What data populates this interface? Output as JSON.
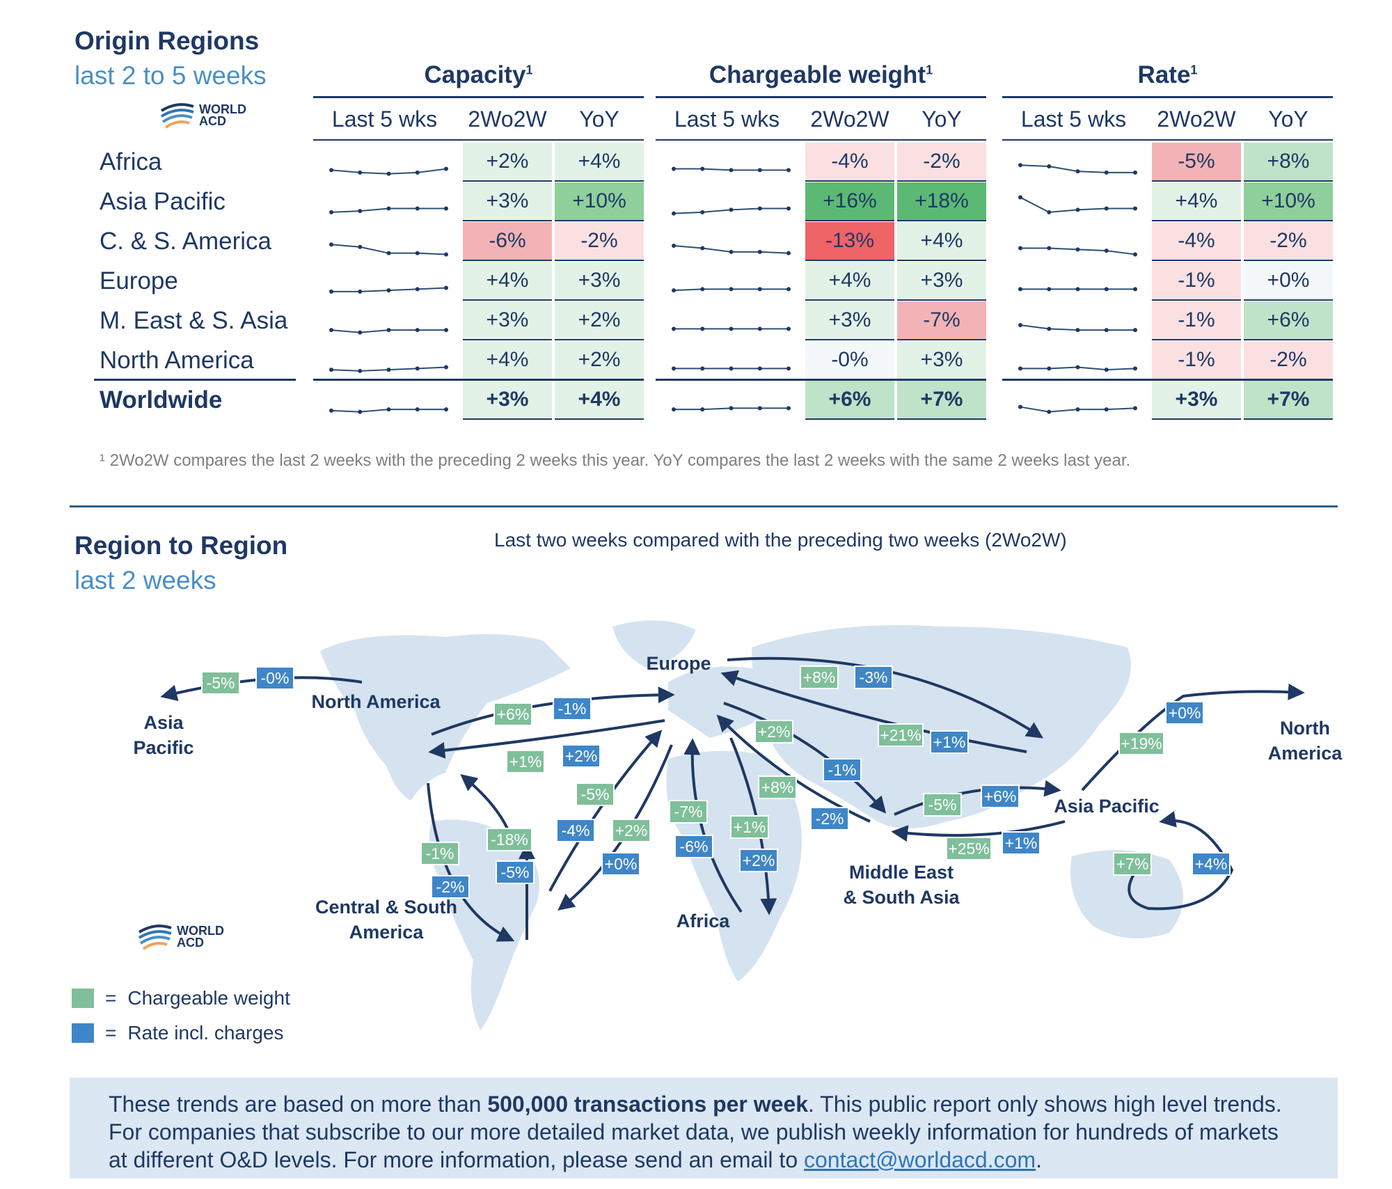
{
  "section1": {
    "title": "Origin Regions",
    "subtitle": "last 2 to 5 weeks",
    "logo_text": [
      "WORLD",
      "ACD"
    ],
    "groups": [
      {
        "title": "Capacity",
        "sup": "1",
        "cols": [
          "Last 5 wks",
          "2Wo2W",
          "YoY"
        ]
      },
      {
        "title": "Chargeable weight",
        "sup": "1",
        "cols": [
          "Last 5 wks",
          "2Wo2W",
          "YoY"
        ]
      },
      {
        "title": "Rate",
        "sup": "1",
        "cols": [
          "Last 5 wks",
          "2Wo2W",
          "YoY"
        ]
      }
    ],
    "rows": [
      "Africa",
      "Asia Pacific",
      "C. & S. America",
      "Europe",
      "M. East & S. Asia",
      "North America",
      "Worldwide"
    ],
    "footnote": "¹ 2Wo2W compares the last 2 weeks with the preceding 2 weeks this year. YoY compares the last 2 weeks with the same 2 weeks last year."
  },
  "chart_data": [
    {
      "type": "table",
      "title": "Origin Regions – last 2 to 5 weeks",
      "columns": [
        "Capacity 2Wo2W",
        "Capacity YoY",
        "Chargeable weight 2Wo2W",
        "Chargeable weight YoY",
        "Rate 2Wo2W",
        "Rate YoY"
      ],
      "rows": [
        {
          "region": "Africa",
          "values": [
            "+2%",
            "+4%",
            "-4%",
            "-2%",
            "-5%",
            "+8%"
          ],
          "numeric": [
            2,
            4,
            -4,
            -2,
            -5,
            8
          ]
        },
        {
          "region": "Asia Pacific",
          "values": [
            "+3%",
            "+10%",
            "+16%",
            "+18%",
            "+4%",
            "+10%"
          ],
          "numeric": [
            3,
            10,
            16,
            18,
            4,
            10
          ]
        },
        {
          "region": "C. & S. America",
          "values": [
            "-6%",
            "-2%",
            "-13%",
            "+4%",
            "-4%",
            "-2%"
          ],
          "numeric": [
            -6,
            -2,
            -13,
            4,
            -4,
            -2
          ]
        },
        {
          "region": "Europe",
          "values": [
            "+4%",
            "+3%",
            "+4%",
            "+3%",
            "-1%",
            "+0%"
          ],
          "numeric": [
            4,
            3,
            4,
            3,
            -1,
            0
          ]
        },
        {
          "region": "M. East & S. Asia",
          "values": [
            "+3%",
            "+2%",
            "+3%",
            "-7%",
            "-1%",
            "+6%"
          ],
          "numeric": [
            3,
            2,
            3,
            -7,
            -1,
            6
          ]
        },
        {
          "region": "North America",
          "values": [
            "+4%",
            "+2%",
            "-0%",
            "+3%",
            "-1%",
            "-2%"
          ],
          "numeric": [
            4,
            2,
            0,
            3,
            -1,
            -2
          ]
        },
        {
          "region": "Worldwide",
          "values": [
            "+3%",
            "+4%",
            "+6%",
            "+7%",
            "+3%",
            "+7%"
          ],
          "numeric": [
            3,
            4,
            6,
            7,
            3,
            7
          ]
        }
      ],
      "sparklines_last5wks": {
        "capacity": [
          [
            100,
            98,
            97,
            98,
            101
          ],
          [
            98,
            99,
            101,
            101,
            101
          ],
          [
            104,
            102,
            97,
            97,
            96
          ],
          [
            98,
            98,
            99,
            100,
            101
          ],
          [
            99,
            97,
            99,
            99,
            99
          ],
          [
            99,
            98,
            99,
            100,
            101
          ],
          [
            98,
            97,
            99,
            99,
            99
          ]
        ],
        "chargeable_weight": [
          [
            101,
            101,
            100,
            100,
            100
          ],
          [
            97,
            98,
            100,
            101,
            101
          ],
          [
            103,
            101,
            98,
            98,
            97
          ],
          [
            99,
            100,
            100,
            100,
            100
          ],
          [
            100,
            100,
            100,
            100,
            100
          ],
          [
            100,
            100,
            100,
            100,
            100
          ],
          [
            99,
            99,
            100,
            100,
            100
          ]
        ],
        "rate": [
          [
            104,
            103,
            99,
            98,
            98
          ],
          [
            110,
            98,
            100,
            101,
            101
          ],
          [
            101,
            101,
            100,
            99,
            96
          ],
          [
            100,
            100,
            100,
            100,
            100
          ],
          [
            103,
            100,
            99,
            99,
            99
          ],
          [
            100,
            100,
            101,
            99,
            100
          ],
          [
            101,
            97,
            99,
            99,
            100
          ]
        ]
      }
    },
    {
      "type": "map-flows",
      "title": "Last two weeks compared with the preceding two weeks (2Wo2W)",
      "legend": [
        {
          "label": "Chargeable weight",
          "color": "#7fbf9a"
        },
        {
          "label": "Rate incl. charges",
          "color": "#3f86c8"
        }
      ],
      "flows": [
        {
          "from": "North America",
          "to": "Asia Pacific",
          "chargeable_weight": "-5%",
          "rate": "-0%"
        },
        {
          "from": "North America",
          "to": "Europe",
          "chargeable_weight": "+6%",
          "rate": "-1%"
        },
        {
          "from": "Europe",
          "to": "North America",
          "chargeable_weight": "+1%",
          "rate": "+2%"
        },
        {
          "from": "Europe",
          "to": "Asia Pacific",
          "chargeable_weight": "+8%",
          "rate": "-3%"
        },
        {
          "from": "Asia Pacific",
          "to": "Europe",
          "chargeable_weight": "+21%",
          "rate": "+1%"
        },
        {
          "from": "Europe",
          "to": "Middle East & South Asia",
          "chargeable_weight": "+2%",
          "rate": "-1%"
        },
        {
          "from": "Middle East & South Asia",
          "to": "Europe",
          "chargeable_weight": "+8%",
          "rate": "-2%"
        },
        {
          "from": "Middle East & South Asia",
          "to": "Asia Pacific",
          "chargeable_weight": "-5%",
          "rate": "+6%"
        },
        {
          "from": "Asia Pacific",
          "to": "Middle East & South Asia",
          "chargeable_weight": "+25%",
          "rate": "+1%"
        },
        {
          "from": "Asia Pacific",
          "to": "North America",
          "chargeable_weight": "+19%",
          "rate": "+0%"
        },
        {
          "from": "Asia Pacific",
          "to": "Asia Pacific",
          "chargeable_weight": "+7%",
          "rate": "+4%"
        },
        {
          "from": "Central & South America",
          "to": "Europe",
          "chargeable_weight": "-5%",
          "rate": "-4%"
        },
        {
          "from": "Europe",
          "to": "Central & South America",
          "chargeable_weight": "+2%",
          "rate": "+0%"
        },
        {
          "from": "Central & South America",
          "to": "North America",
          "chargeable_weight": "-18%",
          "rate": "-5%"
        },
        {
          "from": "North America",
          "to": "Central & South America",
          "chargeable_weight": "-1%",
          "rate": "-2%"
        },
        {
          "from": "Africa",
          "to": "Europe",
          "chargeable_weight": "-7%",
          "rate": "-6%"
        },
        {
          "from": "Europe",
          "to": "Africa",
          "chargeable_weight": "+1%",
          "rate": "+2%"
        }
      ]
    }
  ],
  "section2": {
    "title": "Region to Region",
    "subtitle": "last 2 weeks",
    "map_subtitle": "Last two weeks compared with the preceding two weeks (2Wo2W)",
    "logo_text": [
      "WORLD",
      "ACD"
    ],
    "region_labels": {
      "asia_pacific_left": [
        "Asia",
        "Pacific"
      ],
      "north_america": "North America",
      "europe": "Europe",
      "north_america_right": [
        "North",
        "America"
      ],
      "asia_pacific": "Asia Pacific",
      "central_south_america": [
        "Central & South",
        "America"
      ],
      "africa": "Africa",
      "middle_east": [
        "Middle East",
        "& South Asia"
      ]
    },
    "legend": [
      {
        "symbol": "=",
        "label": "Chargeable weight"
      },
      {
        "symbol": "=",
        "label": "Rate incl. charges"
      }
    ]
  },
  "footer": {
    "text_1": "These trends are based on more than ",
    "bold": "500,000 transactions per week",
    "text_2": ". This public report only shows high level trends. For companies that subscribe to our more detailed market data, we publish weekly information for hundreds of markets at different O&D levels. For more information, please send an email to ",
    "email": "contact@worldacd.com",
    "text_3": "."
  },
  "colors": {
    "navy": "#1f3864",
    "green_light": "#e2f0e6",
    "green_mid": "#c6e4cf",
    "green_dark": "#63be7b",
    "red_light": "#fce4e4",
    "red_mid": "#f4b4b8",
    "red_dark": "#f26b6d",
    "badge_green": "#7fbf9a",
    "badge_blue": "#3f86c8"
  }
}
